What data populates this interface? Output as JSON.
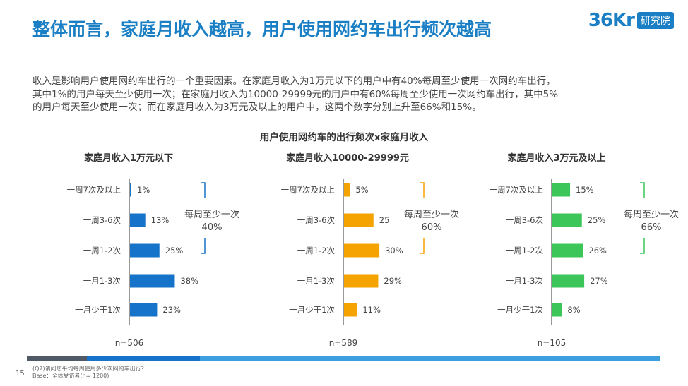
{
  "header": {
    "title": "整体而言，家庭月收入越高，用户使用网约车出行频次越高",
    "logo_mark": "36Kr",
    "logo_text": "研究院"
  },
  "intro": {
    "line1": "收入是影响用户使用网约车出行的一个重要因素。在家庭月收入为1万元以下的用户中有40%每周至少使用一次网约车出行，",
    "line2": "其中1%的用户每天至少使用一次；在家庭月收入为10000-29999元的用户中有60%每周至少使用一次网约车出行，其中5%",
    "line3": "的用户每天至少使用一次；而在家庭月收入为3万元及以上的用户中，这两个数字分别上升至66%和15%。"
  },
  "chart_data": {
    "type": "bar",
    "orientation": "horizontal",
    "title": "用户使用网约车的出行频次x家庭月收入",
    "categories": [
      "一周7次及以上",
      "一周3-6次",
      "一周1-2次",
      "一月1-3次",
      "一月少于1次"
    ],
    "series": [
      {
        "name": "家庭月收入1万元以下",
        "values": [
          1,
          13,
          25,
          38,
          23
        ],
        "value_labels": [
          "1%",
          "13%",
          "25%",
          "38%",
          "23%"
        ],
        "n": "n=506",
        "weekly_label": "每周至少一次",
        "weekly_value": "40%",
        "color": "#1573c9"
      },
      {
        "name": "家庭月收入10000-29999元",
        "values": [
          5,
          25,
          30,
          29,
          11
        ],
        "value_labels": [
          "5%",
          "25",
          "30%",
          "29%",
          "11%"
        ],
        "n": "n=589",
        "weekly_label": "每周至少一次",
        "weekly_value": "60%",
        "color": "#f5a300"
      },
      {
        "name": "家庭月收入3万元及以上",
        "values": [
          15,
          25,
          26,
          27,
          8
        ],
        "value_labels": [
          "15%",
          "25%",
          "26%",
          "27%",
          "8%"
        ],
        "n": "n=105",
        "weekly_label": "每周至少一次",
        "weekly_value": "66%",
        "color": "#3cc65a"
      }
    ]
  },
  "footer": {
    "page_number": "15",
    "note1": "(Q7)请问您平均每周使用多少次网约车出行？",
    "note2": "Base：全体受访者(n= 1200)",
    "bar_colors": [
      "#505a66",
      "#1573c9",
      "#3b9fe0"
    ]
  }
}
